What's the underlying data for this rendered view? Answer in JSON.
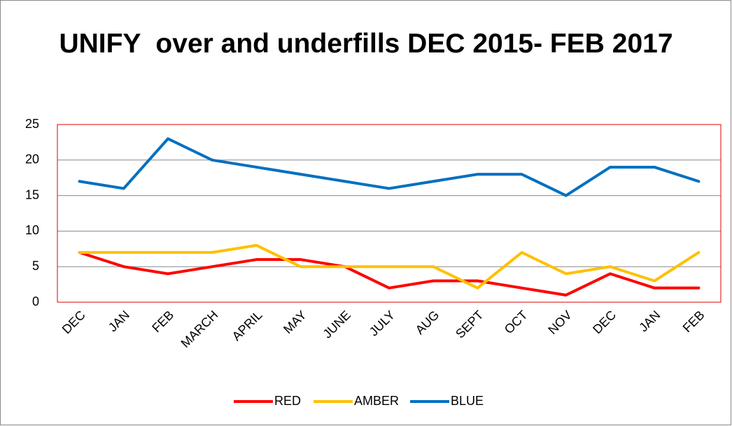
{
  "chart_data": {
    "type": "line",
    "title": "UNIFY  over and underfills DEC 2015- FEB 2017",
    "categories": [
      "DEC",
      "JAN",
      "FEB",
      "MARCH",
      "APRIL",
      "MAY",
      "JUNE",
      "JULY",
      "AUG",
      "SEPT",
      "OCT",
      "NOV",
      "DEC",
      "JAN",
      "FEB"
    ],
    "series": [
      {
        "name": "RED",
        "color": "#ff0000",
        "values": [
          7,
          5,
          4,
          5,
          6,
          6,
          5,
          2,
          3,
          3,
          2,
          1,
          4,
          2,
          2
        ]
      },
      {
        "name": "AMBER",
        "color": "#ffc000",
        "values": [
          7,
          7,
          7,
          7,
          8,
          5,
          5,
          5,
          5,
          2,
          7,
          4,
          5,
          3,
          7
        ]
      },
      {
        "name": "BLUE",
        "color": "#0070c0",
        "values": [
          17,
          16,
          23,
          20,
          19,
          18,
          17,
          16,
          17,
          18,
          18,
          15,
          19,
          19,
          17
        ]
      }
    ],
    "ylim": [
      0,
      25
    ],
    "yticks": [
      0,
      5,
      10,
      15,
      20,
      25
    ],
    "grid": true,
    "legend": "bottom"
  }
}
